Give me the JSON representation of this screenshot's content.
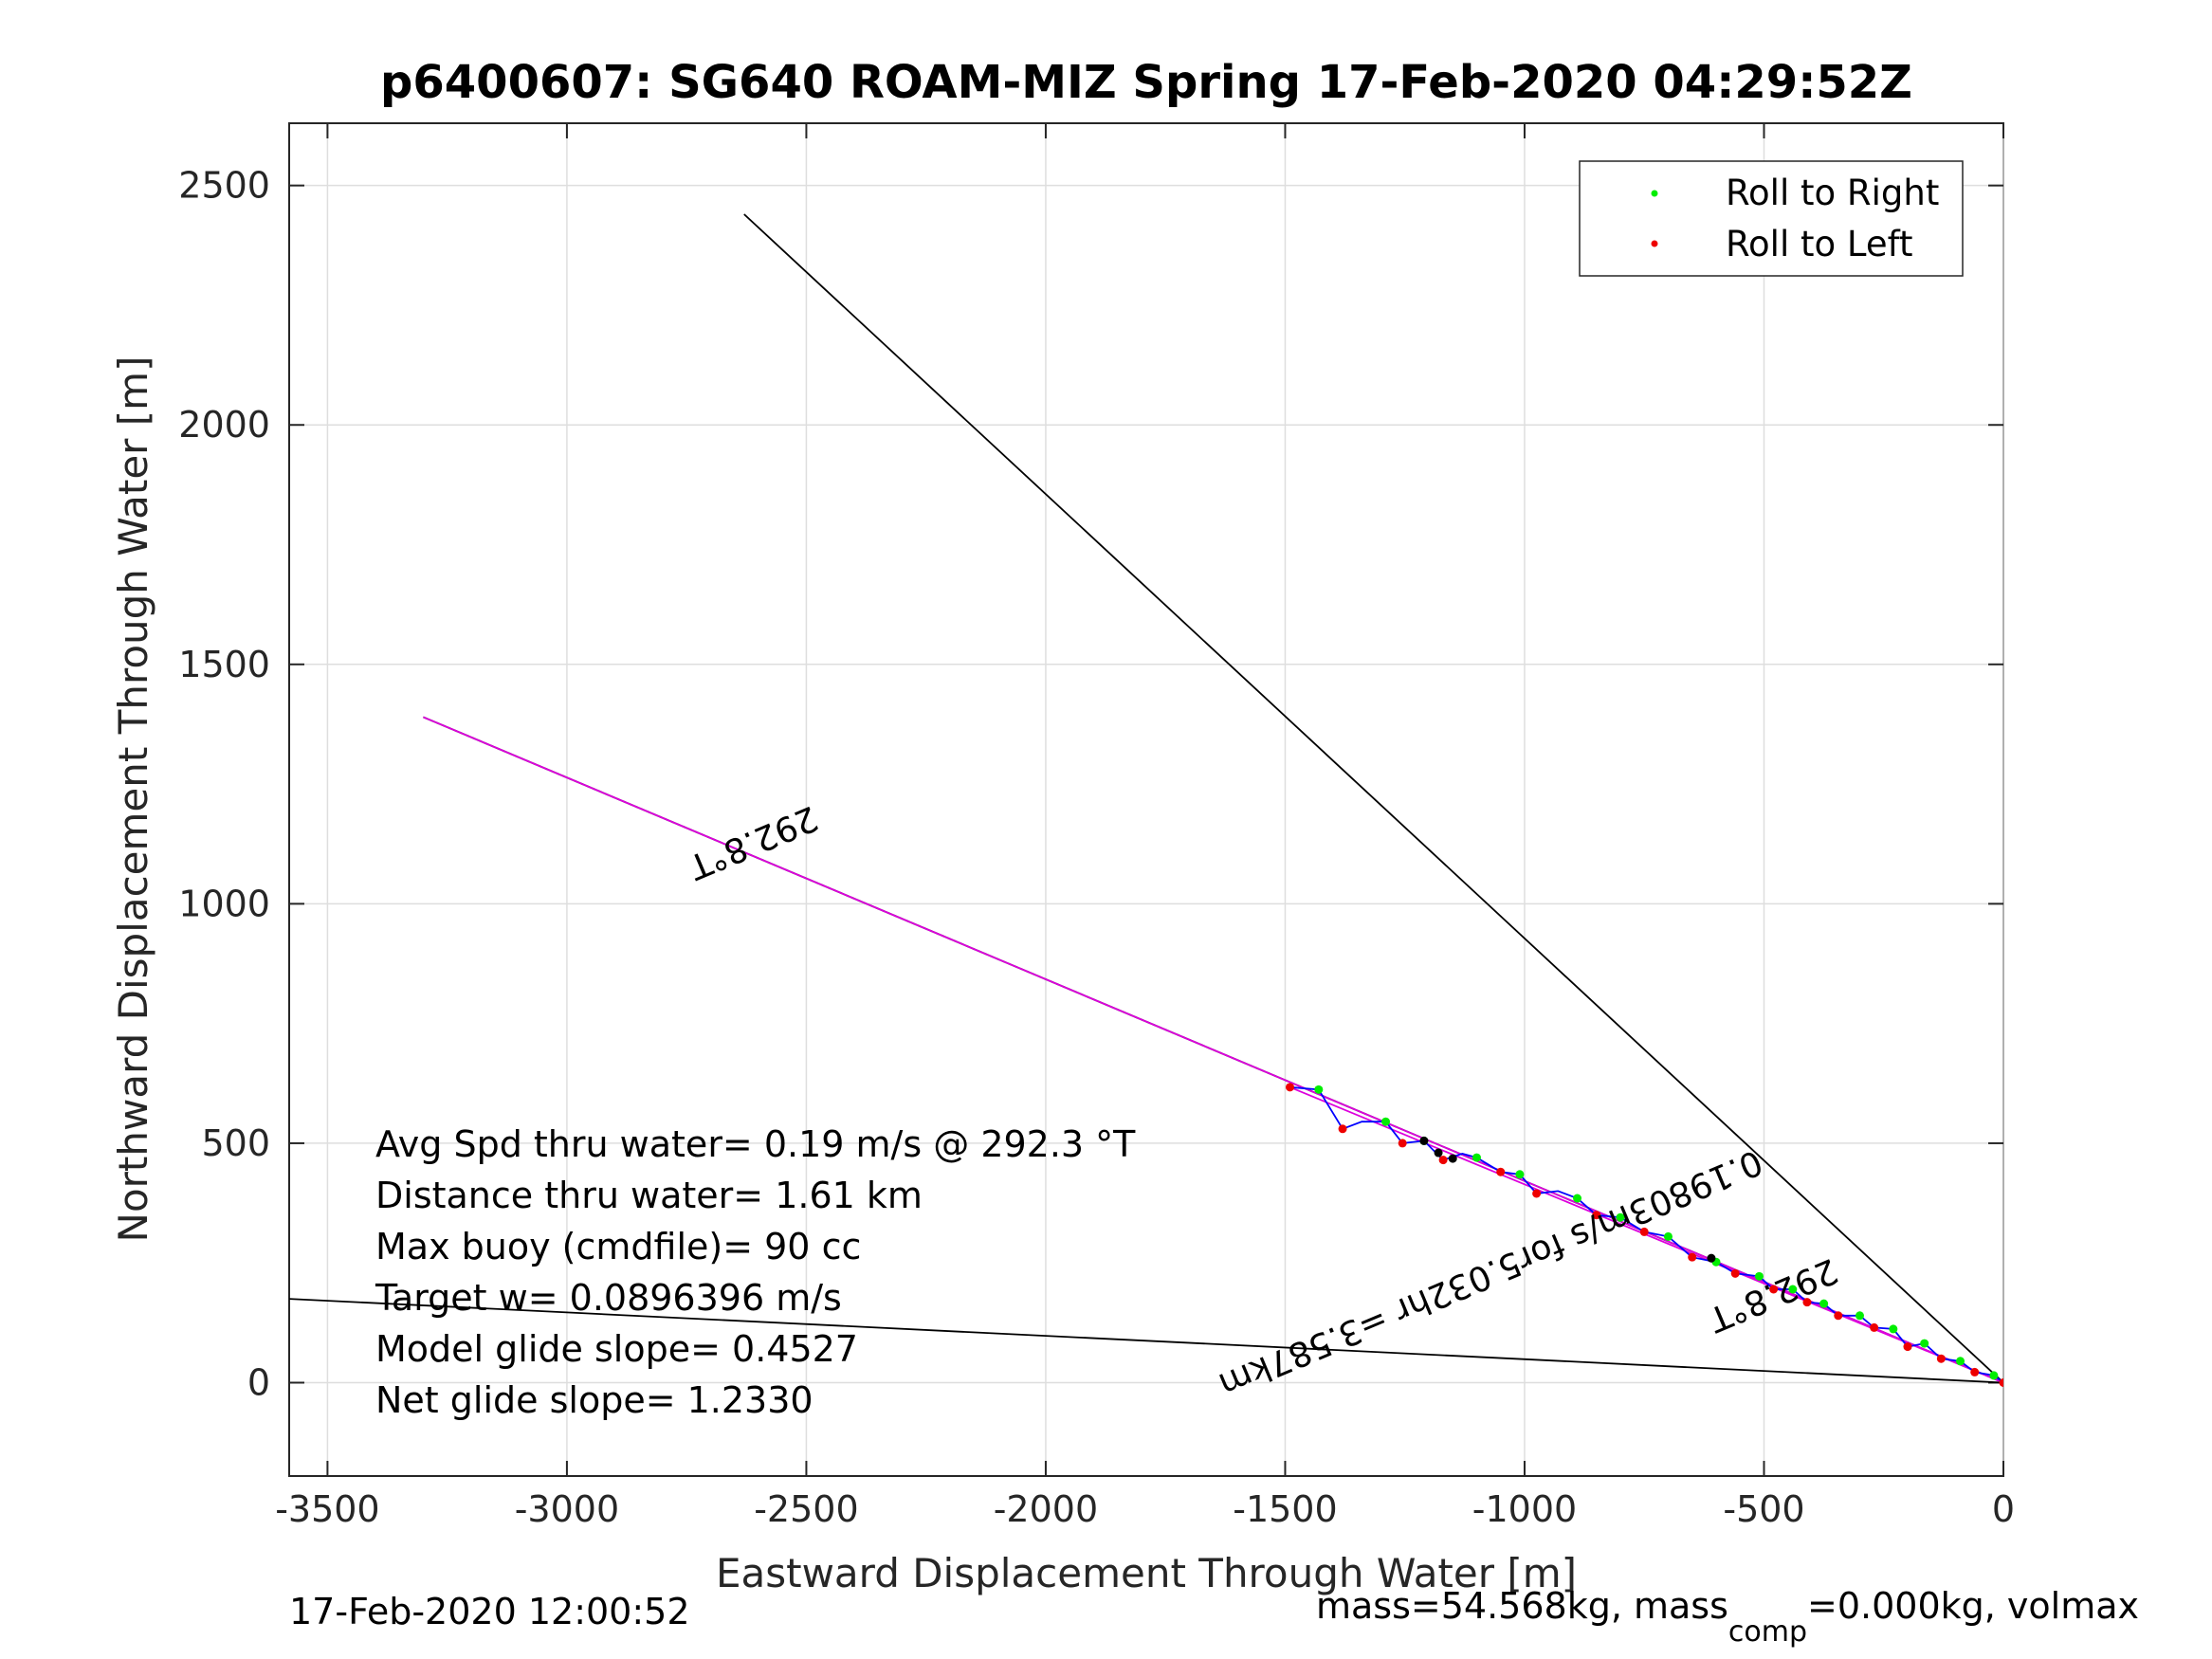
{
  "title": "p6400607: SG640 ROAM-MIZ Spring 17-Feb-2020 04:29:52Z",
  "footer_left": "17-Feb-2020 12:00:52",
  "footer_right": {
    "prefix": "mass=54.568kg, mass",
    "subscript": "comp",
    "suffix": "=0.000kg, volmax"
  },
  "chart_data": {
    "type": "line",
    "title": "p6400607: SG640 ROAM-MIZ Spring 17-Feb-2020 04:29:52Z",
    "xlabel": "Eastward Displacement Through Water [m]",
    "ylabel": "Northward Displacement Through Water [m]",
    "xlim": [
      -3580,
      0
    ],
    "ylim": [
      -195,
      2630
    ],
    "xticks": [
      -3500,
      -3000,
      -2500,
      -2000,
      -1500,
      -1000,
      -500,
      0
    ],
    "yticks": [
      0,
      500,
      1000,
      1500,
      2000,
      2500
    ],
    "xtick_labels": [
      "-3500",
      "-3000",
      "-2500",
      "-2000",
      "-1500",
      "-1000",
      "-500",
      "0"
    ],
    "ytick_labels": [
      "0",
      "500",
      "1000",
      "1500",
      "2000",
      "2500"
    ],
    "grid": true,
    "legend_position": "top-right",
    "legend": [
      {
        "label": "Roll to Right",
        "color": "#00ee00"
      },
      {
        "label": "Roll to Left",
        "color": "#ee0000"
      }
    ],
    "series": [
      {
        "kind": "line",
        "color": "#000000",
        "points": [
          [
            0,
            0
          ],
          [
            -2630,
            2440
          ]
        ]
      },
      {
        "kind": "line",
        "color": "#000000",
        "points": [
          [
            0,
            0
          ],
          [
            -3580,
            175
          ]
        ]
      },
      {
        "kind": "line",
        "color": "#000000",
        "points": [
          [
            0,
            0
          ],
          [
            -3300,
            1390
          ]
        ]
      },
      {
        "kind": "line",
        "color": "#dd00dd",
        "points": [
          [
            0,
            0
          ],
          [
            -3300,
            1390
          ]
        ]
      },
      {
        "kind": "line",
        "color": "#dd00dd",
        "points": [
          [
            0,
            0
          ],
          [
            -1490,
            617
          ]
        ]
      },
      {
        "kind": "line",
        "color": "#0000ff",
        "points": [
          [
            0,
            0
          ],
          [
            -20,
            15
          ],
          [
            -60,
            22
          ],
          [
            -90,
            45
          ],
          [
            -130,
            50
          ],
          [
            -165,
            82
          ],
          [
            -200,
            75
          ],
          [
            -230,
            112
          ],
          [
            -270,
            115
          ],
          [
            -300,
            140
          ],
          [
            -345,
            140
          ],
          [
            -375,
            165
          ],
          [
            -410,
            168
          ],
          [
            -440,
            195
          ],
          [
            -480,
            195
          ],
          [
            -510,
            222
          ],
          [
            -560,
            228
          ],
          [
            -600,
            252
          ],
          [
            -650,
            262
          ],
          [
            -700,
            305
          ],
          [
            -750,
            315
          ],
          [
            -800,
            345
          ],
          [
            -850,
            350
          ],
          [
            -890,
            385
          ],
          [
            -930,
            400
          ],
          [
            -975,
            395
          ],
          [
            -1010,
            435
          ],
          [
            -1050,
            440
          ],
          [
            -1100,
            470
          ],
          [
            -1130,
            478
          ],
          [
            -1170,
            465
          ],
          [
            -1210,
            505
          ],
          [
            -1255,
            500
          ],
          [
            -1290,
            545
          ],
          [
            -1340,
            545
          ],
          [
            -1380,
            530
          ],
          [
            -1430,
            612
          ],
          [
            -1490,
            617
          ]
        ]
      },
      {
        "kind": "scatter",
        "name": "Roll to Right",
        "color": "#00ee00",
        "points": [
          [
            -20,
            15
          ],
          [
            -90,
            45
          ],
          [
            -165,
            82
          ],
          [
            -230,
            112
          ],
          [
            -300,
            140
          ],
          [
            -375,
            165
          ],
          [
            -440,
            195
          ],
          [
            -510,
            222
          ],
          [
            -600,
            252
          ],
          [
            -700,
            305
          ],
          [
            -800,
            345
          ],
          [
            -890,
            385
          ],
          [
            -1010,
            435
          ],
          [
            -1100,
            470
          ],
          [
            -1210,
            505
          ],
          [
            -1290,
            545
          ],
          [
            -1430,
            612
          ]
        ]
      },
      {
        "kind": "scatter",
        "name": "Roll to Left",
        "color": "#ee0000",
        "points": [
          [
            0,
            0
          ],
          [
            -60,
            22
          ],
          [
            -130,
            50
          ],
          [
            -200,
            75
          ],
          [
            -270,
            115
          ],
          [
            -345,
            140
          ],
          [
            -410,
            168
          ],
          [
            -480,
            195
          ],
          [
            -560,
            228
          ],
          [
            -650,
            262
          ],
          [
            -750,
            315
          ],
          [
            -850,
            350
          ],
          [
            -975,
            395
          ],
          [
            -1050,
            440
          ],
          [
            -1170,
            465
          ],
          [
            -1255,
            500
          ],
          [
            -1380,
            530
          ],
          [
            -1490,
            617
          ]
        ]
      },
      {
        "kind": "scatter",
        "color": "#000000",
        "points": [
          [
            -1150,
            468
          ],
          [
            -1180,
            480
          ],
          [
            -610,
            260
          ],
          [
            -1210,
            505
          ]
        ]
      }
    ],
    "annotations": [
      {
        "text": "292.8°T",
        "x": -2620,
        "y": 1150,
        "rotation_deg": 157.2
      },
      {
        "text": "292.8°T",
        "x": -490,
        "y": 205,
        "rotation_deg": 157.2
      },
      {
        "text": "0.19803m/s for5.032hr =3.587km",
        "x": -1080,
        "y": 250,
        "rotation_deg": 157.2
      }
    ],
    "stats": [
      "Avg Spd thru water=  0.19 m/s @ 292.3 °T",
      "Distance thru water=  1.61 km",
      "Max buoy (cmdfile)= 90 cc",
      "Target w= 0.0896396 m/s",
      "Model glide slope= 0.4527",
      "Net glide slope= 1.2330"
    ]
  }
}
